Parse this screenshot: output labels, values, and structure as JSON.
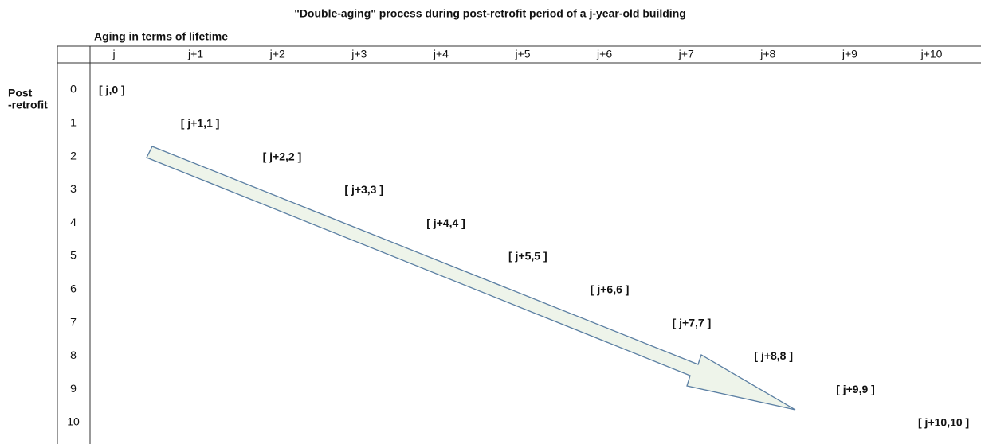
{
  "title": "\"Double-aging\" process during post-retrofit period of a j-year-old building",
  "column_header": "Aging in terms of lifetime",
  "row_header": [
    "Post",
    "-retrofit"
  ],
  "columns": [
    "j",
    "j+1",
    "j+2",
    "j+3",
    "j+4",
    "j+5",
    "j+6",
    "j+7",
    "j+8",
    "j+9",
    "j+10"
  ],
  "rows": [
    "0",
    "1",
    "2",
    "3",
    "4",
    "5",
    "6",
    "7",
    "8",
    "9",
    "10"
  ],
  "cells": [
    "[ j,0 ]",
    "[ j+1,1 ]",
    "[ j+2,2 ]",
    "[ j+3,3 ]",
    "[ j+4,4 ]",
    "[ j+5,5 ]",
    "[ j+6,6 ]",
    "[ j+7,7 ]",
    "[ j+8,8 ]",
    "[ j+9,9 ]",
    "[ j+10,10 ]"
  ]
}
